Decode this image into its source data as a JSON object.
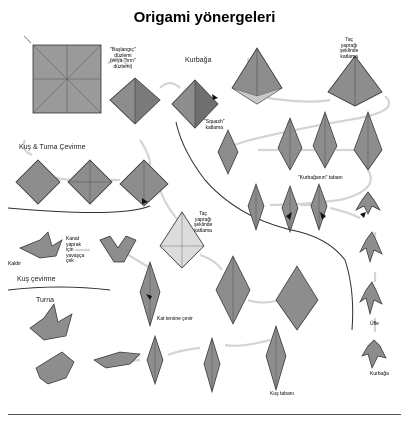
{
  "title": "Origami yönergeleri",
  "sections": {
    "kurbaga": "Kurbağa",
    "kus_turna": "Kuş & Turna Çevirme",
    "kus": "Kuş çevirme",
    "turna": "Turna"
  },
  "labels": {
    "baslangic_1": "\"Başlangıç\"",
    "baslangic_2": "düzlemi",
    "baslangic_3": "(veya \"fırın\"",
    "baslangic_4": "düzlemi)",
    "squash_1": "\"Squash\"",
    "squash_2": "katlama",
    "tac_top_1": "Taç",
    "tac_top_2": "yaprağı",
    "tac_top_3": "şeklinde",
    "tac_top_4": "katlama",
    "kurbagatabani": "\"Kurbağanın\" tabanı",
    "tac_mid_1": "Taç",
    "tac_mid_2": "yaprağı",
    "tac_mid_3": "şeklinde",
    "tac_mid_4": "katlama",
    "kanat_1": "Kanat",
    "kanat_2": "yaprak",
    "kanat_3": "için",
    "kanat_4": "yavaşça",
    "kanat_5": "çek",
    "kaldir": "Kaldır",
    "kat_terse": "Kat tersine çevir",
    "kus_tabani": "Kuş tabanı",
    "ufle": "Üfle",
    "kurbaga_end": "Kurbağa"
  },
  "colors": {
    "paper": "#8d8d8d",
    "paper_dark": "#6a6a6a",
    "paper_light": "#c8c8c8",
    "crease": "#3a3a3a",
    "path": "#cfcfcf"
  }
}
